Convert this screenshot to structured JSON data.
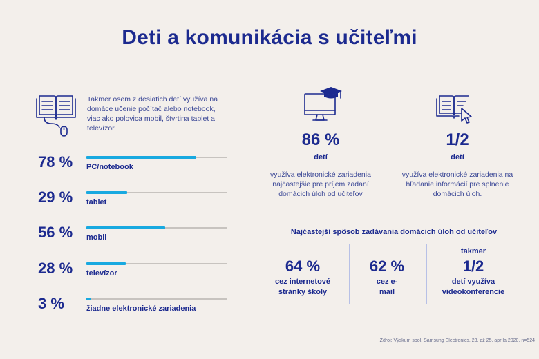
{
  "title": "Deti a komunikácia s učiteľmi",
  "intro": "Takmer osem z desiatich detí využíva na domáce učenie počítač alebo notebook, viac ako polovica mobil, štvrtina tablet a televízor.",
  "device_stats": [
    {
      "pct": "78 %",
      "value": 78,
      "label": "PC/notebook"
    },
    {
      "pct": "29 %",
      "value": 29,
      "label": "tablet"
    },
    {
      "pct": "56 %",
      "value": 56,
      "label": "mobil"
    },
    {
      "pct": "28 %",
      "value": 28,
      "label": "televízor"
    },
    {
      "pct": "3 %",
      "value": 3,
      "label": "žiadne elektronické zariadenia"
    }
  ],
  "highlight_left": {
    "number": "86 %",
    "sub": "detí",
    "desc": "využíva elektronické zariadenia najčastejšie pre príjem zadaní domácich úloh od učiteľov",
    "icon": "monitor-graduation-cap-icon"
  },
  "highlight_right": {
    "number": "1/2",
    "sub": "detí",
    "desc": "využíva elektronické zariadenia na hľadanie informácií pre splnenie domácich úloh.",
    "icon": "book-cursor-icon"
  },
  "methods": {
    "title": "Najčastejší spôsob zadávania domácich úloh od učiteľov",
    "columns": [
      {
        "pre": "",
        "number": "64 %",
        "sub": "cez internetové stránky školy"
      },
      {
        "pre": "",
        "number": "62 %",
        "sub": "cez e-mail"
      },
      {
        "pre": "takmer",
        "number": "1/2",
        "sub": "detí využíva videokonferencie"
      }
    ]
  },
  "source": "Zdroj: Výskum spol. Samsung Electronics, 23. až 25. apríla 2020, n=524",
  "colors": {
    "background": "#f3efeb",
    "navy": "#1c2a8f",
    "bar": "#18a9e0",
    "track": "#c7c3bf"
  }
}
